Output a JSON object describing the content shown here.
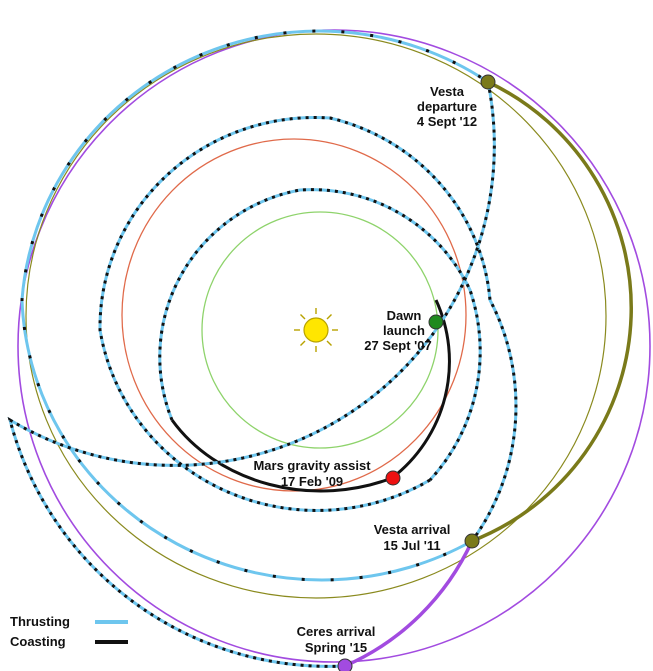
{
  "colors": {
    "thrusting": "#6ec6ee",
    "coasting": "#111111",
    "earth_orbit": "#8ed36b",
    "mars_orbit": "#e06a4a",
    "vesta_orbit": "#8a8a1e",
    "ceres_orbit": "#a24be0",
    "vesta_marker": "#7a7a1a",
    "ceres_marker": "#a24be0",
    "launch_marker": "#1f8a1f",
    "mars_marker": "#ee1111",
    "sun_fill": "#ffe600",
    "sun_stroke": "#b8a200"
  },
  "events": {
    "vesta_departure": {
      "line1": "Vesta",
      "line2": "departure",
      "line3": "4 Sept '12"
    },
    "dawn_launch": {
      "line1": "Dawn",
      "line2": "launch",
      "line3": "27 Sept '07"
    },
    "mars_assist": {
      "line1": "Mars gravity assist",
      "line2": "17 Feb '09"
    },
    "vesta_arrival": {
      "line1": "Vesta arrival",
      "line2": "15 Jul '11"
    },
    "ceres_arrival": {
      "line1": "Ceres arrival",
      "line2": "Spring '15"
    }
  },
  "legend": {
    "thrusting": "Thrusting",
    "coasting": "Coasting"
  },
  "icons": {
    "sun": "sun-icon"
  }
}
